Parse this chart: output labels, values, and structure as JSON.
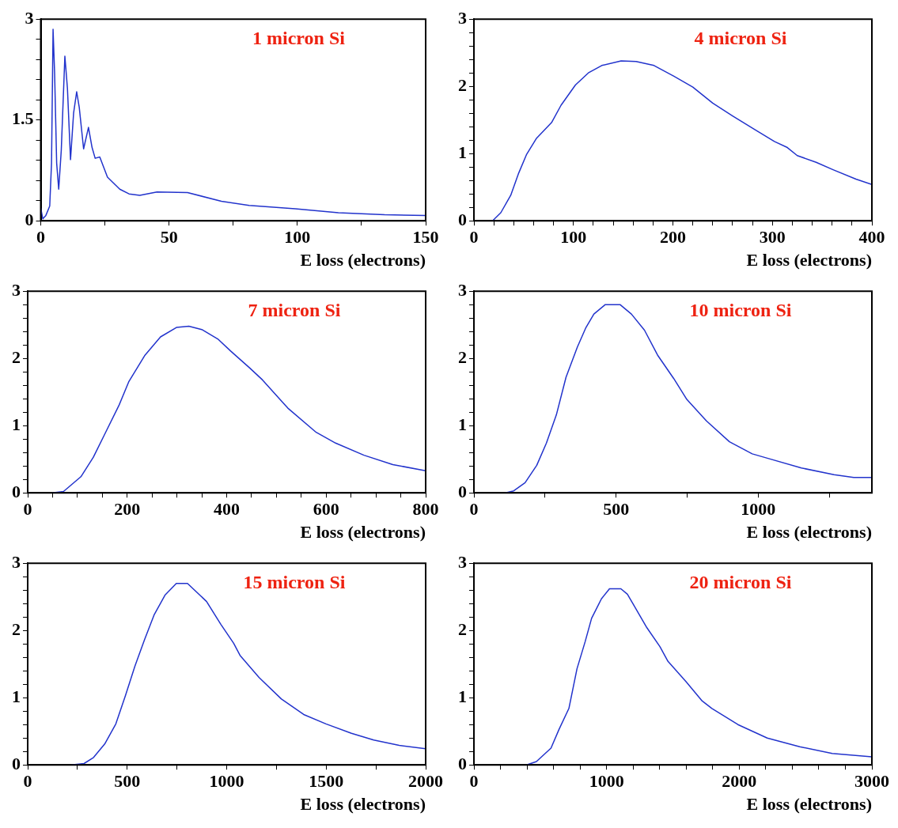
{
  "chart_data": [
    {
      "type": "line",
      "title": "1 micron Si",
      "xlabel": "E loss (electrons)",
      "xlim": [
        0,
        150
      ],
      "ylim": [
        0,
        3
      ],
      "grid": false,
      "legend": false,
      "marker": "none",
      "line_style": "solid",
      "xticks": [
        0,
        {
          "value": 25,
          "label": null
        },
        50,
        {
          "value": 75,
          "label": null
        },
        100,
        {
          "value": 125,
          "label": null
        },
        150
      ],
      "yticks": [
        0,
        {
          "value": 0.3,
          "label": null
        },
        {
          "value": 0.6,
          "label": null
        },
        {
          "value": 0.9,
          "label": null
        },
        {
          "value": 1.2,
          "label": null
        },
        1.5,
        {
          "value": 1.8,
          "label": null
        },
        {
          "value": 2.1,
          "label": null
        },
        {
          "value": 2.4,
          "label": null
        },
        {
          "value": 2.7,
          "label": null
        },
        3
      ],
      "series": [
        {
          "color": "#2233cc",
          "x": [
            0,
            0.8,
            2,
            3.5,
            4.2,
            4.8,
            5.4,
            6.2,
            7,
            8,
            9.4,
            10.4,
            11.6,
            12.8,
            14,
            15,
            16.7,
            18.6,
            20,
            21.2,
            23,
            26,
            30.8,
            34.4,
            38.6,
            45.3,
            57.2,
            70.4,
            81.2,
            99.2,
            116,
            134,
            150
          ],
          "values": [
            0.19,
            0.03,
            0.08,
            0.22,
            0.86,
            2.85,
            2.2,
            0.86,
            0.47,
            1.05,
            2.45,
            1.97,
            0.91,
            1.6,
            1.92,
            1.69,
            1.07,
            1.39,
            1.09,
            0.93,
            0.95,
            0.65,
            0.47,
            0.4,
            0.38,
            0.43,
            0.42,
            0.29,
            0.23,
            0.18,
            0.12,
            0.09,
            0.08
          ]
        }
      ]
    },
    {
      "type": "line",
      "title": "4 micron Si",
      "xlabel": "E loss (electrons)",
      "xlim": [
        0,
        400
      ],
      "ylim": [
        0,
        3
      ],
      "grid": false,
      "legend": false,
      "marker": "none",
      "line_style": "solid",
      "xticks": [
        0,
        {
          "value": 20,
          "label": null
        },
        {
          "value": 40,
          "label": null
        },
        {
          "value": 60,
          "label": null
        },
        {
          "value": 80,
          "label": null
        },
        100,
        {
          "value": 120,
          "label": null
        },
        {
          "value": 140,
          "label": null
        },
        {
          "value": 160,
          "label": null
        },
        {
          "value": 180,
          "label": null
        },
        200,
        {
          "value": 220,
          "label": null
        },
        {
          "value": 240,
          "label": null
        },
        {
          "value": 260,
          "label": null
        },
        {
          "value": 280,
          "label": null
        },
        300,
        {
          "value": 320,
          "label": null
        },
        {
          "value": 340,
          "label": null
        },
        {
          "value": 360,
          "label": null
        },
        {
          "value": 380,
          "label": null
        },
        400
      ],
      "yticks": [
        0,
        {
          "value": 0.2,
          "label": null
        },
        {
          "value": 0.4,
          "label": null
        },
        {
          "value": 0.6,
          "label": null
        },
        {
          "value": 0.8,
          "label": null
        },
        1,
        {
          "value": 1.2,
          "label": null
        },
        {
          "value": 1.4,
          "label": null
        },
        {
          "value": 1.6,
          "label": null
        },
        {
          "value": 1.8,
          "label": null
        },
        2,
        {
          "value": 2.2,
          "label": null
        },
        {
          "value": 2.4,
          "label": null
        },
        {
          "value": 2.6,
          "label": null
        },
        {
          "value": 2.8,
          "label": null
        },
        3
      ],
      "series": [
        {
          "color": "#2233cc",
          "x": [
            18.7,
            27,
            37,
            45,
            53,
            63,
            78,
            87.6,
            102,
            115,
            128.5,
            148,
            163,
            181,
            201,
            220,
            240,
            260,
            283,
            302,
            315,
            325,
            344,
            361,
            384,
            400
          ],
          "values": [
            0,
            0.12,
            0.38,
            0.71,
            0.99,
            1.23,
            1.46,
            1.72,
            2.02,
            2.2,
            2.31,
            2.38,
            2.37,
            2.31,
            2.15,
            1.99,
            1.75,
            1.56,
            1.35,
            1.18,
            1.09,
            0.97,
            0.87,
            0.76,
            0.62,
            0.54
          ]
        }
      ]
    },
    {
      "type": "line",
      "title": "7 micron Si",
      "xlabel": "E loss (electrons)",
      "xlim": [
        0,
        800
      ],
      "ylim": [
        0,
        3
      ],
      "grid": false,
      "legend": false,
      "marker": "none",
      "line_style": "solid",
      "xticks": [
        0,
        {
          "value": 50,
          "label": null
        },
        {
          "value": 100,
          "label": null
        },
        {
          "value": 150,
          "label": null
        },
        200,
        {
          "value": 250,
          "label": null
        },
        {
          "value": 300,
          "label": null
        },
        {
          "value": 350,
          "label": null
        },
        400,
        {
          "value": 450,
          "label": null
        },
        {
          "value": 500,
          "label": null
        },
        {
          "value": 550,
          "label": null
        },
        600,
        {
          "value": 650,
          "label": null
        },
        {
          "value": 700,
          "label": null
        },
        {
          "value": 750,
          "label": null
        },
        800
      ],
      "yticks": [
        0,
        {
          "value": 0.2,
          "label": null
        },
        {
          "value": 0.4,
          "label": null
        },
        {
          "value": 0.6,
          "label": null
        },
        {
          "value": 0.8,
          "label": null
        },
        1,
        {
          "value": 1.2,
          "label": null
        },
        {
          "value": 1.4,
          "label": null
        },
        {
          "value": 1.6,
          "label": null
        },
        {
          "value": 1.8,
          "label": null
        },
        2,
        {
          "value": 2.2,
          "label": null
        },
        {
          "value": 2.4,
          "label": null
        },
        {
          "value": 2.6,
          "label": null
        },
        {
          "value": 2.8,
          "label": null
        },
        3
      ],
      "series": [
        {
          "color": "#2233cc",
          "x": [
            49,
            72,
            107,
            132,
            158,
            184,
            203,
            235,
            267,
            299,
            324,
            350,
            382,
            408,
            446,
            472,
            523,
            580,
            619,
            676,
            734,
            800
          ],
          "values": [
            0,
            0.02,
            0.24,
            0.53,
            0.92,
            1.31,
            1.65,
            2.04,
            2.32,
            2.46,
            2.48,
            2.43,
            2.29,
            2.11,
            1.86,
            1.68,
            1.26,
            0.9,
            0.74,
            0.56,
            0.42,
            0.33
          ]
        }
      ]
    },
    {
      "type": "line",
      "title": "10 micron Si",
      "xlabel": "E loss (electrons)",
      "xlim": [
        0,
        1400
      ],
      "ylim": [
        0,
        3
      ],
      "grid": false,
      "legend": false,
      "marker": "none",
      "line_style": "solid",
      "xticks": [
        0,
        {
          "value": 250,
          "label": null
        },
        500,
        {
          "value": 750,
          "label": null
        },
        1000,
        {
          "value": 1250,
          "label": null
        }
      ],
      "yticks": [
        0,
        {
          "value": 0.2,
          "label": null
        },
        {
          "value": 0.4,
          "label": null
        },
        {
          "value": 0.6,
          "label": null
        },
        {
          "value": 0.8,
          "label": null
        },
        1,
        {
          "value": 1.2,
          "label": null
        },
        {
          "value": 1.4,
          "label": null
        },
        {
          "value": 1.6,
          "label": null
        },
        {
          "value": 1.8,
          "label": null
        },
        2,
        {
          "value": 2.2,
          "label": null
        },
        {
          "value": 2.4,
          "label": null
        },
        {
          "value": 2.6,
          "label": null
        },
        {
          "value": 2.8,
          "label": null
        },
        3
      ],
      "series": [
        {
          "color": "#2233cc",
          "x": [
            111,
            140,
            180,
            221,
            255,
            290,
            324,
            364,
            393,
            422,
            462,
            514,
            554,
            600,
            646,
            703,
            749,
            818,
            899,
            979,
            1037,
            1152,
            1267,
            1336,
            1400
          ],
          "values": [
            0,
            0.03,
            0.15,
            0.41,
            0.74,
            1.16,
            1.72,
            2.17,
            2.45,
            2.66,
            2.8,
            2.8,
            2.66,
            2.42,
            2.05,
            1.7,
            1.39,
            1.07,
            0.76,
            0.58,
            0.51,
            0.37,
            0.27,
            0.23,
            0.23
          ]
        }
      ]
    },
    {
      "type": "line",
      "title": "15 micron Si",
      "xlabel": "E loss (electrons)",
      "xlim": [
        0,
        2000
      ],
      "ylim": [
        0,
        3
      ],
      "grid": false,
      "legend": false,
      "marker": "none",
      "line_style": "solid",
      "xticks": [
        0,
        {
          "value": 250,
          "label": null
        },
        500,
        {
          "value": 750,
          "label": null
        },
        1000,
        {
          "value": 1250,
          "label": null
        },
        1500,
        {
          "value": 1750,
          "label": null
        },
        2000
      ],
      "yticks": [
        0,
        {
          "value": 0.2,
          "label": null
        },
        {
          "value": 0.4,
          "label": null
        },
        {
          "value": 0.6,
          "label": null
        },
        {
          "value": 0.8,
          "label": null
        },
        1,
        {
          "value": 1.2,
          "label": null
        },
        {
          "value": 1.4,
          "label": null
        },
        {
          "value": 1.6,
          "label": null
        },
        {
          "value": 1.8,
          "label": null
        },
        2,
        {
          "value": 2.2,
          "label": null
        },
        {
          "value": 2.4,
          "label": null
        },
        {
          "value": 2.6,
          "label": null
        },
        {
          "value": 2.8,
          "label": null
        },
        3
      ],
      "series": [
        {
          "color": "#2233cc",
          "x": [
            219,
            283,
            331,
            387,
            443,
            491,
            539,
            587,
            635,
            691,
            747,
            803,
            899,
            971,
            1035,
            1067,
            1163,
            1275,
            1387,
            1499,
            1627,
            1739,
            1867,
            2000
          ],
          "values": [
            0,
            0.02,
            0.11,
            0.31,
            0.61,
            1.03,
            1.47,
            1.86,
            2.23,
            2.53,
            2.7,
            2.7,
            2.43,
            2.09,
            1.81,
            1.63,
            1.3,
            0.98,
            0.75,
            0.61,
            0.47,
            0.37,
            0.29,
            0.24
          ]
        }
      ]
    },
    {
      "type": "line",
      "title": "20 micron Si",
      "xlabel": "E loss (electrons)",
      "xlim": [
        0,
        3000
      ],
      "ylim": [
        0,
        3
      ],
      "grid": false,
      "legend": false,
      "marker": "none",
      "line_style": "solid",
      "xticks": [
        0,
        {
          "value": 200,
          "label": null
        },
        {
          "value": 400,
          "label": null
        },
        {
          "value": 600,
          "label": null
        },
        {
          "value": 800,
          "label": null
        },
        1000,
        {
          "value": 1200,
          "label": null
        },
        {
          "value": 1400,
          "label": null
        },
        {
          "value": 1600,
          "label": null
        },
        {
          "value": 1800,
          "label": null
        },
        2000,
        {
          "value": 2200,
          "label": null
        },
        {
          "value": 2400,
          "label": null
        },
        {
          "value": 2600,
          "label": null
        },
        {
          "value": 2800,
          "label": null
        },
        3000
      ],
      "yticks": [
        0,
        {
          "value": 0.2,
          "label": null
        },
        {
          "value": 0.4,
          "label": null
        },
        {
          "value": 0.6,
          "label": null
        },
        {
          "value": 0.8,
          "label": null
        },
        1,
        {
          "value": 1.2,
          "label": null
        },
        {
          "value": 1.4,
          "label": null
        },
        {
          "value": 1.6,
          "label": null
        },
        {
          "value": 1.8,
          "label": null
        },
        2,
        {
          "value": 2.2,
          "label": null
        },
        {
          "value": 2.4,
          "label": null
        },
        {
          "value": 2.6,
          "label": null
        },
        {
          "value": 2.8,
          "label": null
        },
        3
      ],
      "series": [
        {
          "color": "#2233cc",
          "x": [
            397,
            471,
            581,
            642,
            716,
            777,
            838,
            887,
            961,
            1022,
            1108,
            1157,
            1304,
            1402,
            1463,
            1598,
            1721,
            1794,
            1990,
            2211,
            2456,
            2701,
            3000
          ],
          "values": [
            0,
            0.05,
            0.25,
            0.53,
            0.84,
            1.43,
            1.83,
            2.18,
            2.47,
            2.62,
            2.62,
            2.54,
            2.04,
            1.76,
            1.54,
            1.24,
            0.95,
            0.84,
            0.6,
            0.4,
            0.27,
            0.17,
            0.12
          ]
        }
      ]
    }
  ]
}
